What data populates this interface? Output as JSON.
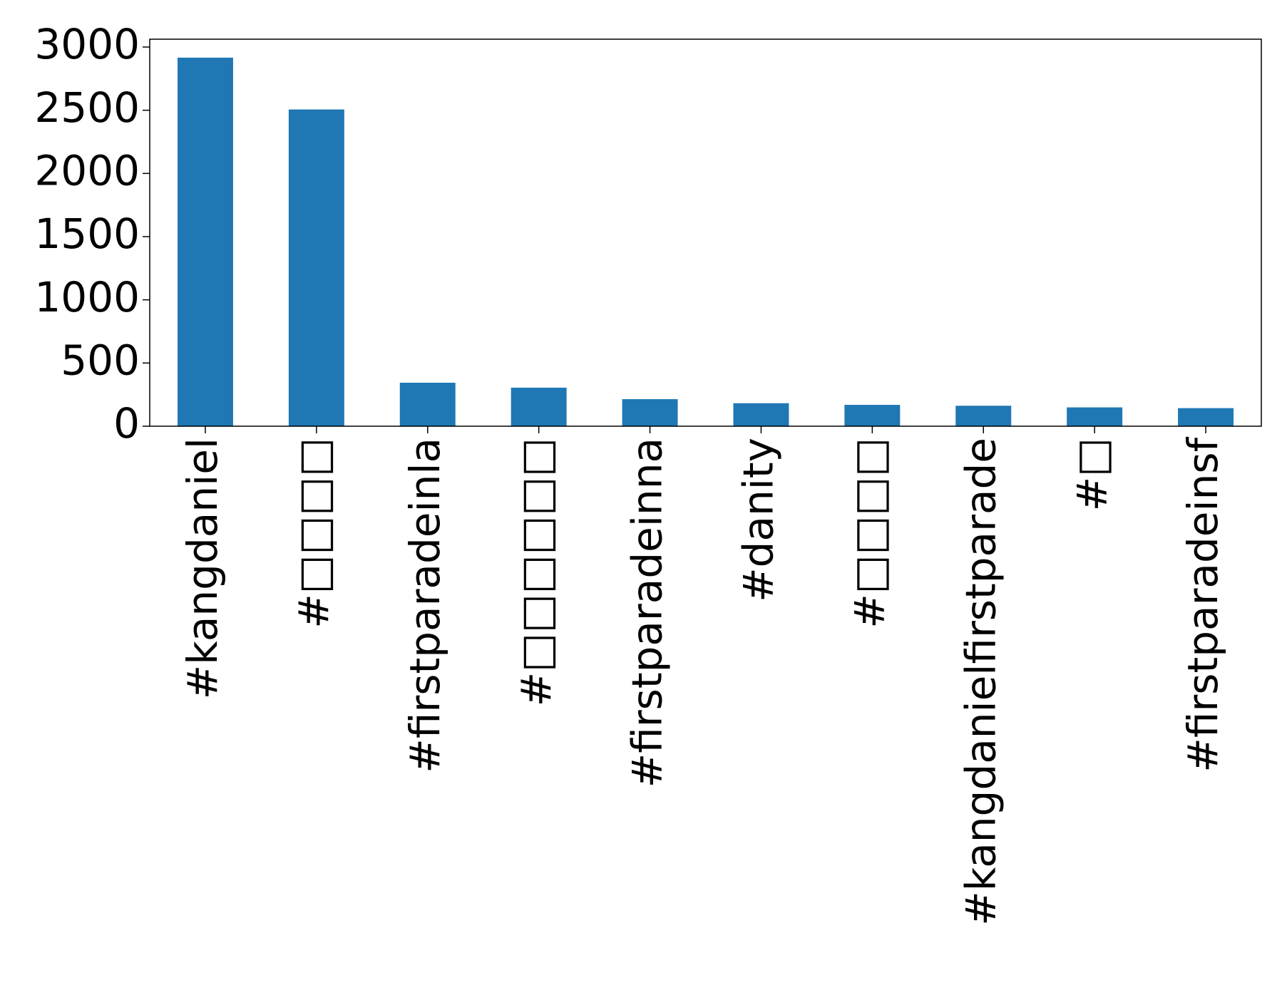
{
  "chart_data": {
    "type": "bar",
    "categories": [
      "#kangdaniel",
      "#□□□□",
      "#firstparadeinla",
      "#□□□□□□",
      "#firstparadeinna",
      "#danity",
      "#□□□□",
      "#kangdanielfirstparade",
      "#□",
      "#firstparadeinsf"
    ],
    "values": [
      2916,
      2506,
      344,
      305,
      214,
      182,
      169,
      162,
      149,
      143
    ],
    "color": "#1f77b4",
    "ylim": [
      0,
      3062
    ],
    "yticks": [
      0,
      500,
      1000,
      1500,
      2000,
      2500,
      3000
    ]
  }
}
